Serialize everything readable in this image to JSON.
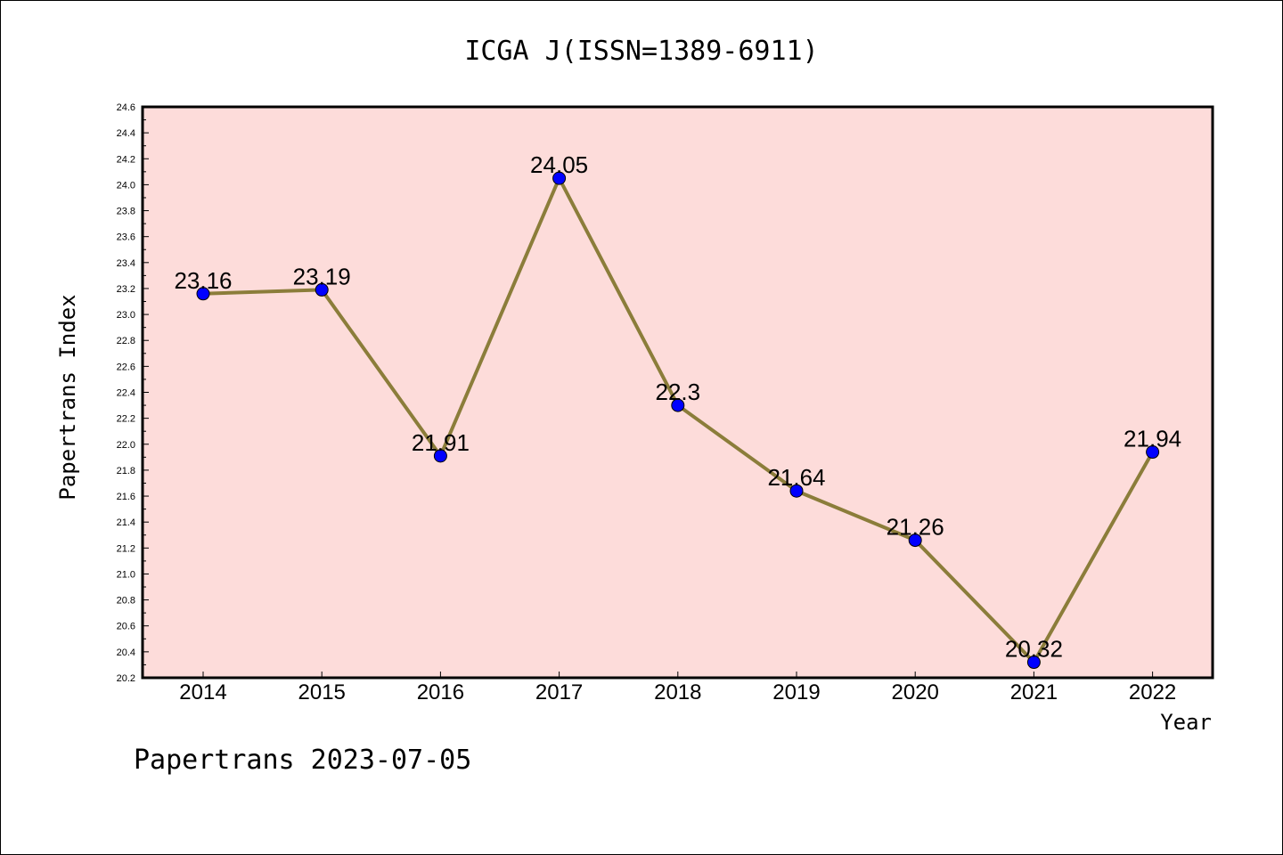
{
  "chart_data": {
    "type": "line",
    "title": "ICGA J(ISSN=1389-6911)",
    "xlabel": "Year",
    "ylabel": "Papertrans Index",
    "categories": [
      "2014",
      "2015",
      "2016",
      "2017",
      "2018",
      "2019",
      "2020",
      "2021",
      "2022"
    ],
    "series": [
      {
        "values": [
          23.16,
          23.19,
          21.91,
          24.05,
          22.3,
          21.64,
          21.26,
          20.32,
          21.94
        ],
        "labels": [
          "23.16",
          "23.19",
          "21.91",
          "24.05",
          "22.3",
          "21.64",
          "21.26",
          "20.32",
          "21.94"
        ]
      }
    ],
    "ylim": [
      20.2,
      24.6
    ],
    "yticks": [
      "20.2",
      "20.4",
      "20.6",
      "20.8",
      "21.0",
      "21.2",
      "21.4",
      "21.6",
      "21.8",
      "22.0",
      "22.2",
      "22.4",
      "22.6",
      "22.8",
      "23.0",
      "23.2",
      "23.4",
      "23.6",
      "23.8",
      "24.0",
      "24.2",
      "24.4",
      "24.6"
    ],
    "grid": false,
    "colors": {
      "plot_background": "#fddcda",
      "line": "#8b7d3a",
      "marker": "#0000ff",
      "marker_edge": "#000000"
    },
    "footer": "Papertrans 2023-07-05"
  }
}
